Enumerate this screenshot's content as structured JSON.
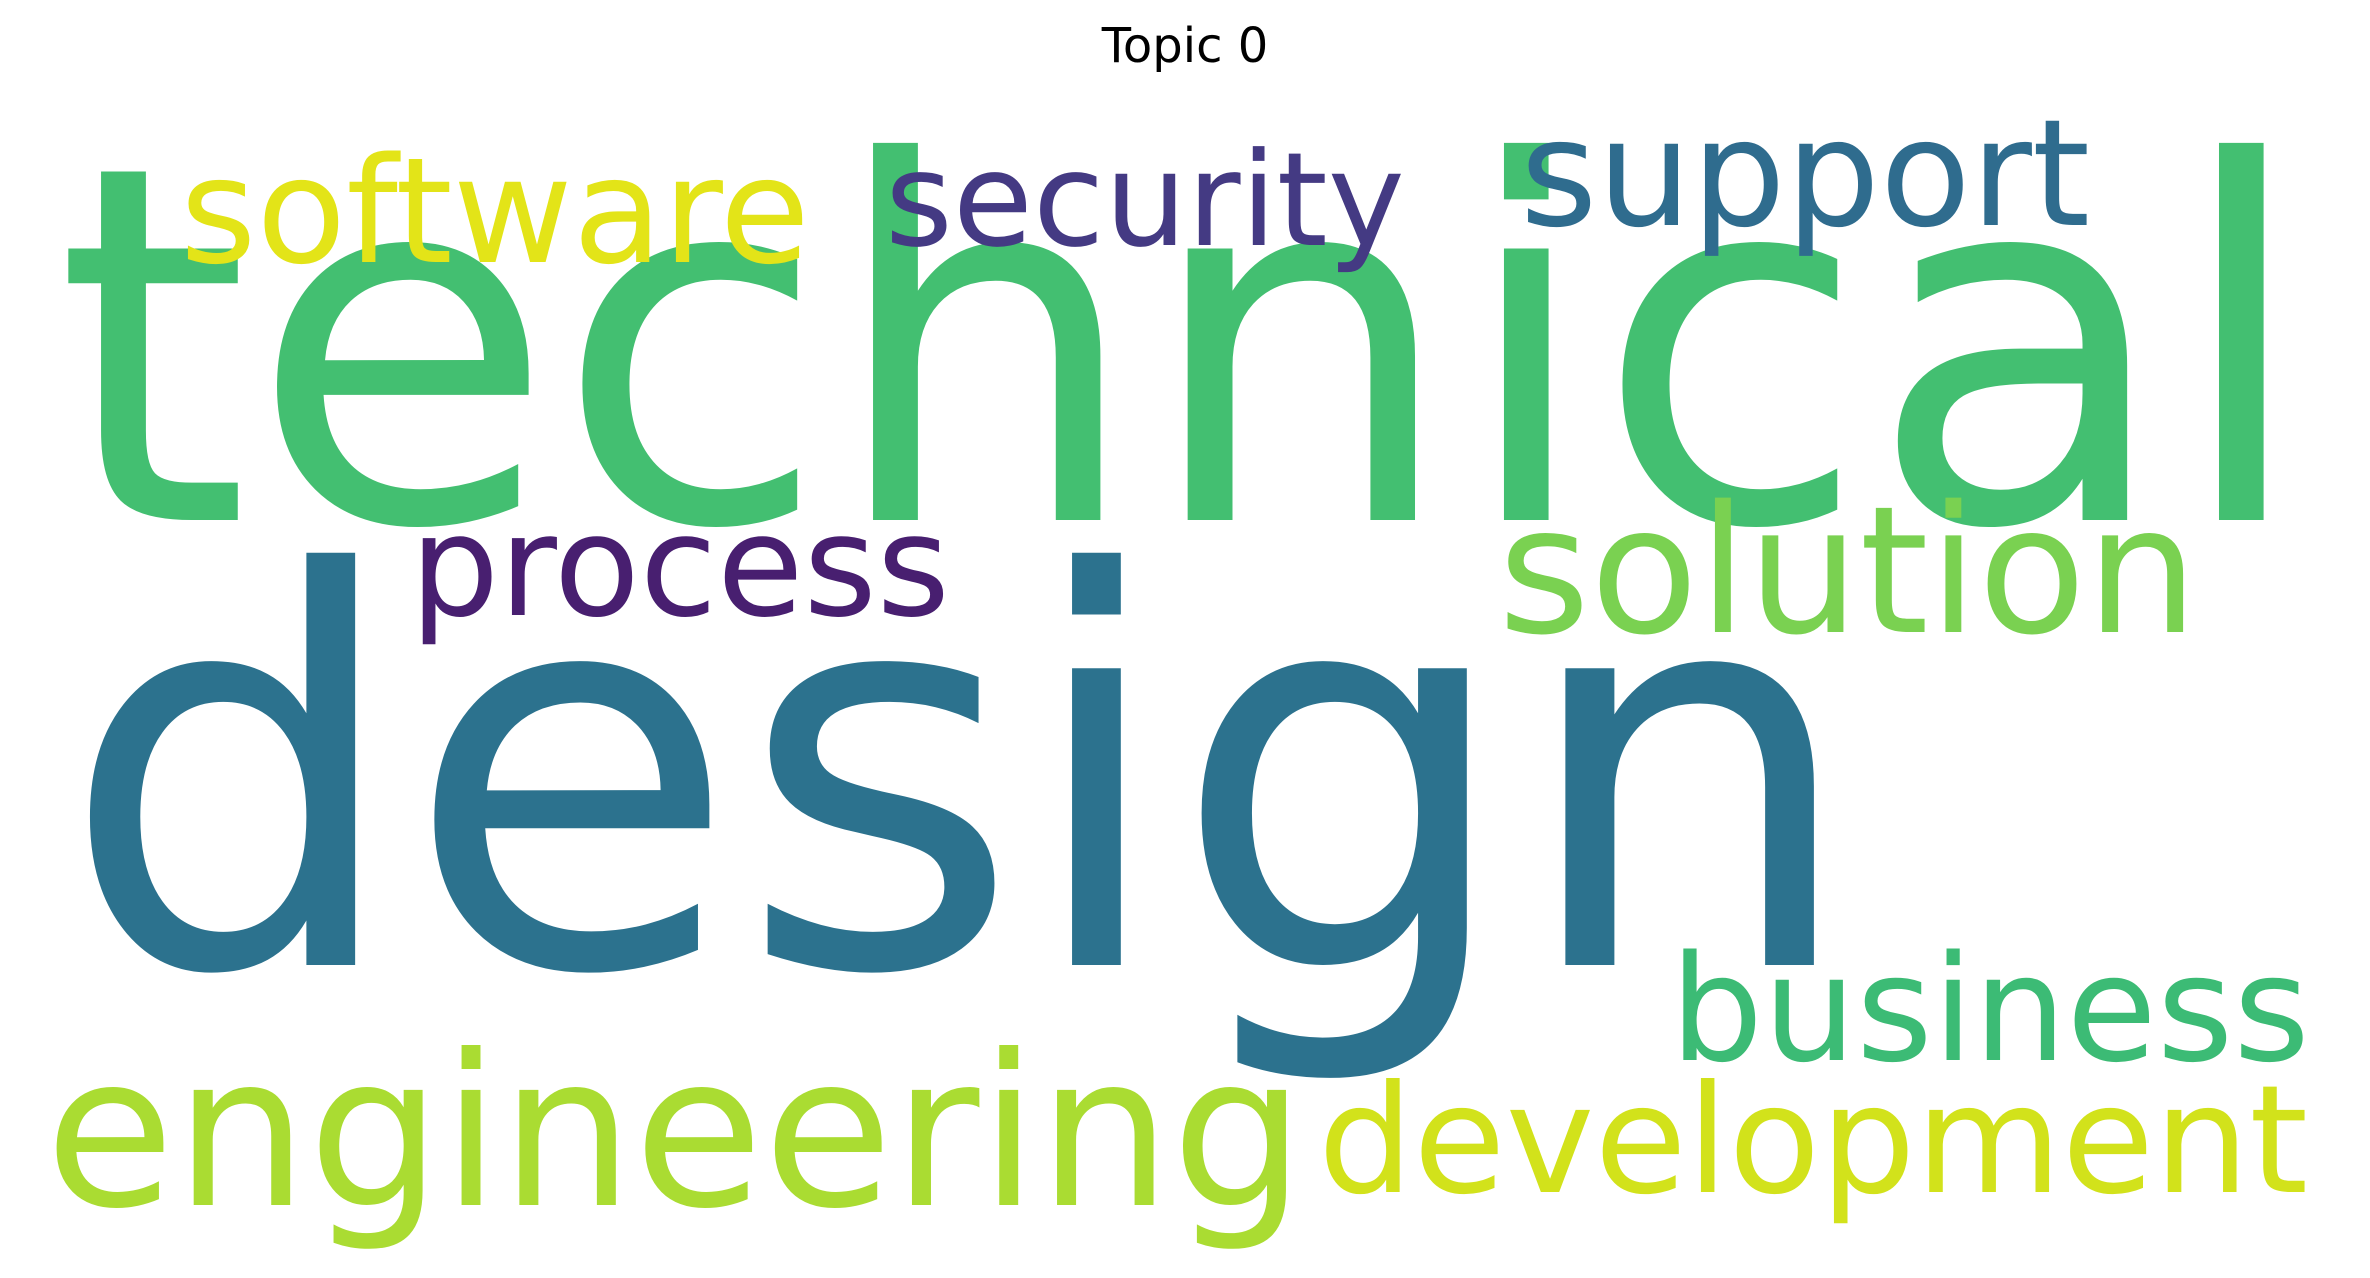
{
  "chart_data": {
    "type": "wordcloud",
    "title": "Topic 0",
    "words": [
      {
        "text": "design",
        "weight": 1.0,
        "color": "#2C728E"
      },
      {
        "text": "technical",
        "weight": 0.8,
        "color": "#43BF71"
      },
      {
        "text": "engineering",
        "weight": 0.45,
        "color": "#AADC32"
      },
      {
        "text": "development",
        "weight": 0.45,
        "color": "#D2E21B"
      },
      {
        "text": "solution",
        "weight": 0.4,
        "color": "#7AD151"
      },
      {
        "text": "support",
        "weight": 0.37,
        "color": "#2F6C8E"
      },
      {
        "text": "business",
        "weight": 0.36,
        "color": "#3CBB75"
      },
      {
        "text": "software",
        "weight": 0.34,
        "color": "#E3E418"
      },
      {
        "text": "security",
        "weight": 0.33,
        "color": "#443A83"
      },
      {
        "text": "process",
        "weight": 0.32,
        "color": "#481F70"
      }
    ]
  }
}
